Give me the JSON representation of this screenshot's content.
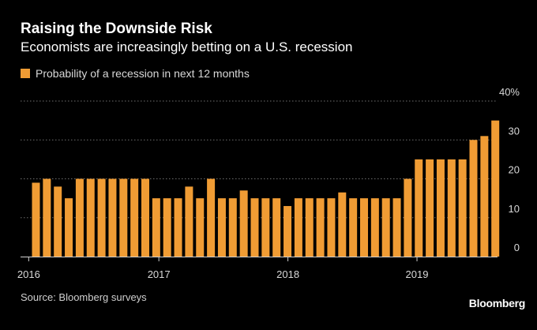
{
  "header": {
    "title": "Raising the Downside Risk",
    "subtitle": "Economists are increasingly betting on a U.S. recession"
  },
  "legend": {
    "label": "Probability of a recession in next 12 months"
  },
  "footer": {
    "source": "Source: Bloomberg surveys",
    "brand": "Bloomberg"
  },
  "colors": {
    "bar": "#F09C34",
    "background": "#000000",
    "grid": "#6e6e6e"
  },
  "chart_data": {
    "type": "bar",
    "title": "Raising the Downside Risk",
    "subtitle": "Economists are increasingly betting on a U.S. recession",
    "series": [
      {
        "name": "Probability of a recession in next 12 months",
        "values": [
          19,
          20,
          18,
          15,
          20,
          20,
          20,
          20,
          20,
          20,
          20,
          15,
          15,
          15,
          18,
          15,
          20,
          15,
          15,
          17,
          15,
          15,
          15,
          13,
          15,
          15,
          15,
          15,
          16.5,
          15,
          15,
          15,
          15,
          15,
          20,
          25,
          25,
          25,
          25,
          25,
          30,
          31,
          35
        ]
      }
    ],
    "x_tick_labels": [
      {
        "label": "2016",
        "index": -0.3
      },
      {
        "label": "2017",
        "index": 11.6
      },
      {
        "label": "2018",
        "index": 23.4
      },
      {
        "label": "2019",
        "index": 35.2
      }
    ],
    "y_ticks": [
      0,
      10,
      20,
      30,
      40
    ],
    "y_tick_labels": [
      "0",
      "10",
      "20",
      "30",
      "40%"
    ],
    "ylim": [
      0,
      40
    ],
    "xlabel": "",
    "ylabel": "",
    "grid": true,
    "legend_position": "top-left"
  }
}
